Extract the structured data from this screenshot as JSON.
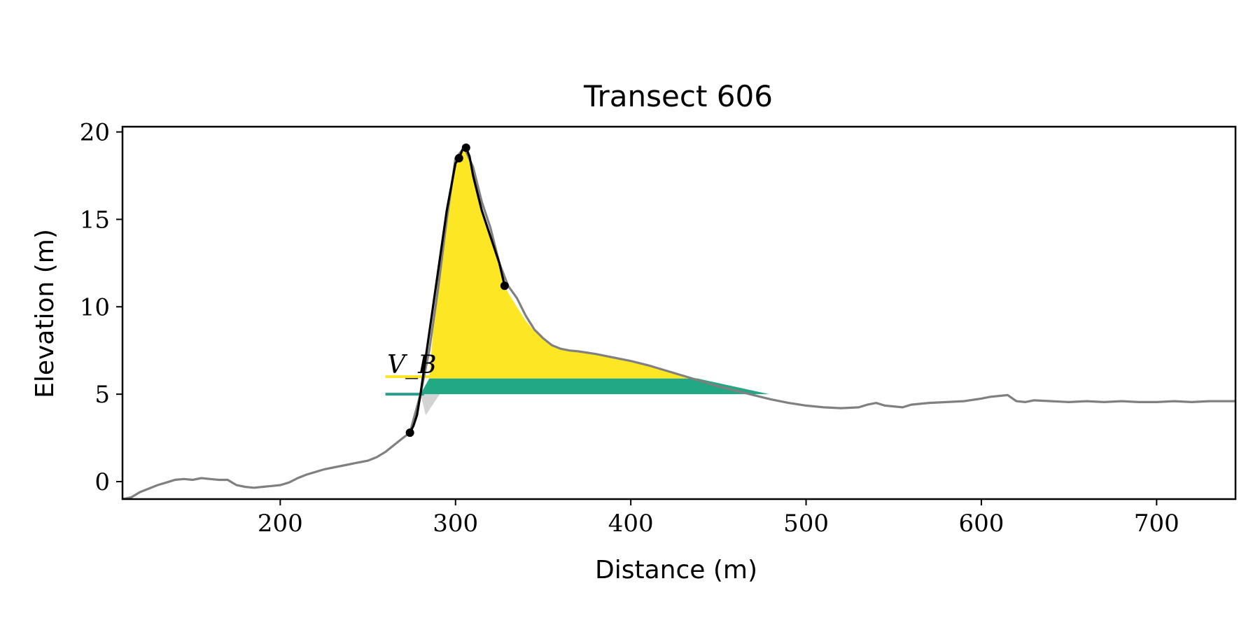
{
  "chart_data": {
    "type": "area",
    "title": "Transect 606",
    "xlabel": "Distance (m)",
    "ylabel": "Elevation (m)",
    "xlim": [
      110,
      745
    ],
    "ylim": [
      -1,
      20.3
    ],
    "xticks": [
      200,
      300,
      400,
      500,
      600,
      700
    ],
    "yticks": [
      0,
      5,
      10,
      15,
      20
    ],
    "grid": false,
    "annotation_text": "V_B",
    "colors": {
      "profile": "#808080",
      "dune_outline": "#000000",
      "volume_above": "#fde725",
      "volume_band": "#22a884",
      "volume_band_line": "#2a9d8f",
      "volume_above_line": "#fde725",
      "toe_wedge": "#d3d3d3"
    },
    "profile": {
      "x": [
        110,
        115,
        120,
        125,
        130,
        135,
        140,
        145,
        150,
        155,
        160,
        165,
        170,
        175,
        180,
        185,
        190,
        195,
        200,
        205,
        210,
        215,
        220,
        225,
        230,
        235,
        240,
        245,
        250,
        255,
        260,
        265,
        270,
        274,
        280,
        285,
        290,
        295,
        300,
        305,
        310,
        315,
        320,
        325,
        330,
        335,
        340,
        345,
        350,
        355,
        360,
        365,
        370,
        380,
        390,
        400,
        410,
        420,
        430,
        440,
        450,
        460,
        470,
        480,
        490,
        500,
        510,
        520,
        530,
        535,
        540,
        545,
        550,
        555,
        560,
        570,
        580,
        590,
        600,
        605,
        610,
        615,
        620,
        625,
        630,
        640,
        650,
        660,
        670,
        680,
        690,
        700,
        710,
        720,
        730,
        745
      ],
      "y": [
        -1.0,
        -0.9,
        -0.6,
        -0.4,
        -0.2,
        -0.05,
        0.1,
        0.15,
        0.1,
        0.2,
        0.15,
        0.1,
        0.1,
        -0.2,
        -0.3,
        -0.35,
        -0.3,
        -0.25,
        -0.2,
        -0.05,
        0.2,
        0.4,
        0.55,
        0.7,
        0.8,
        0.9,
        1.0,
        1.1,
        1.2,
        1.4,
        1.7,
        2.1,
        2.5,
        2.8,
        5.0,
        7.5,
        11.0,
        15.0,
        18.5,
        19.1,
        18.0,
        16.0,
        14.5,
        12.5,
        11.2,
        10.5,
        9.5,
        8.7,
        8.2,
        7.8,
        7.6,
        7.5,
        7.45,
        7.3,
        7.1,
        6.9,
        6.65,
        6.35,
        6.05,
        5.75,
        5.45,
        5.2,
        4.95,
        4.7,
        4.5,
        4.35,
        4.25,
        4.2,
        4.25,
        4.4,
        4.5,
        4.35,
        4.3,
        4.25,
        4.4,
        4.5,
        4.55,
        4.6,
        4.75,
        4.85,
        4.9,
        4.95,
        4.6,
        4.55,
        4.65,
        4.6,
        4.55,
        4.6,
        4.55,
        4.6,
        4.55,
        4.55,
        4.6,
        4.55,
        4.6,
        4.6
      ]
    },
    "dune_outline": {
      "x": [
        274,
        276,
        278,
        280,
        285,
        290,
        295,
        300,
        302,
        304,
        306,
        308,
        310,
        315,
        320,
        325,
        328
      ],
      "y": [
        2.8,
        3.2,
        3.8,
        5.0,
        8.5,
        12.0,
        15.5,
        18.2,
        18.5,
        19.0,
        19.1,
        18.6,
        17.5,
        15.5,
        14.0,
        12.5,
        11.2
      ]
    },
    "key_points": {
      "x": [
        274,
        302,
        306,
        328
      ],
      "y": [
        2.8,
        18.5,
        19.1,
        11.2
      ]
    },
    "volume_above": {
      "upper_x": [
        285,
        290,
        295,
        300,
        302,
        304,
        306,
        308,
        310,
        315,
        320,
        325,
        328,
        330,
        335,
        340,
        345,
        350,
        355,
        360,
        365,
        370,
        380,
        390,
        400,
        410,
        420,
        430,
        438
      ],
      "upper_y": [
        5.9,
        12.0,
        15.5,
        18.2,
        18.5,
        19.0,
        19.1,
        18.6,
        17.5,
        15.5,
        14.0,
        12.5,
        11.2,
        10.8,
        10.0,
        9.2,
        8.6,
        8.2,
        7.8,
        7.6,
        7.5,
        7.45,
        7.3,
        7.1,
        6.9,
        6.65,
        6.35,
        6.05,
        5.9
      ],
      "base": 5.9,
      "x_range": [
        285,
        438
      ]
    },
    "volume_band": {
      "y_low": 5.0,
      "y_high": 5.9,
      "left_x": [
        280,
        285
      ],
      "right_x": [
        479,
        438
      ]
    },
    "toe_wedge": {
      "x": [
        280,
        283,
        291
      ],
      "y": [
        5.0,
        3.8,
        5.0
      ]
    },
    "reference_lines": [
      {
        "y": 5.0,
        "x0": 260,
        "x1": 282
      },
      {
        "y": 6.0,
        "x0": 260,
        "x1": 285
      }
    ]
  }
}
